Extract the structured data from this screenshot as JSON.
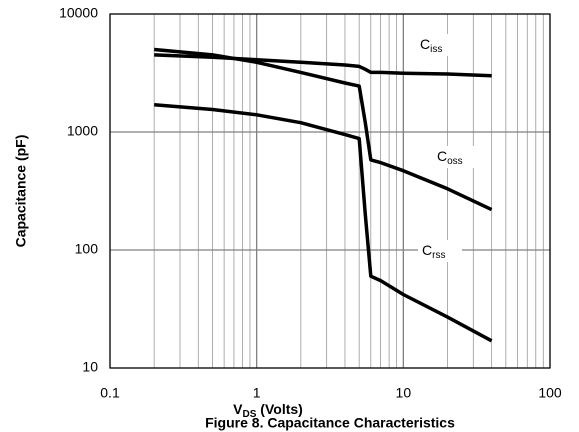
{
  "chart_data": {
    "type": "line",
    "title": "Figure 8. Capacitance Characteristics",
    "xlabel": {
      "main": "V",
      "sub": "DS",
      "rest": " (Volts)"
    },
    "ylabel": "Capacitance (pF)",
    "x": [
      0.2,
      0.5,
      1,
      2,
      4,
      5,
      5.5,
      6,
      7,
      10,
      20,
      40
    ],
    "series": [
      {
        "name": {
          "main": "C",
          "sub": "iss"
        },
        "color": "#000000",
        "values": [
          4500,
          4300,
          4100,
          3900,
          3700,
          3600,
          3400,
          3200,
          3200,
          3150,
          3100,
          3000
        ]
      },
      {
        "name": {
          "main": "C",
          "sub": "oss"
        },
        "color": "#000000",
        "values": [
          5000,
          4500,
          3900,
          3200,
          2600,
          2450,
          1200,
          580,
          550,
          470,
          330,
          220
        ]
      },
      {
        "name": {
          "main": "C",
          "sub": "rss"
        },
        "color": "#000000",
        "values": [
          1700,
          1550,
          1400,
          1200,
          950,
          880,
          200,
          60,
          55,
          42,
          27,
          17
        ]
      }
    ],
    "xlim": [
      0.1,
      100
    ],
    "xticks": [
      0.1,
      1,
      10,
      100
    ],
    "ylim": [
      10,
      10000
    ],
    "yticks": [
      10,
      100,
      1000,
      10000
    ],
    "xscale": "log",
    "yscale": "log",
    "grid": true,
    "minor_grid_x": true
  }
}
